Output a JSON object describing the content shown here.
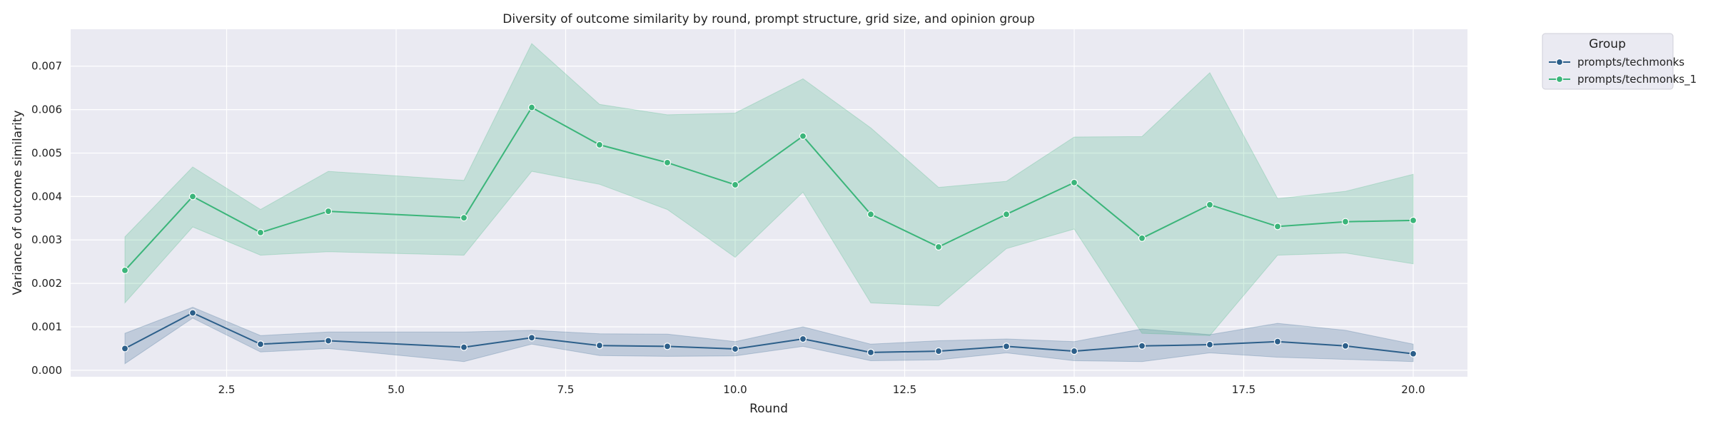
{
  "chart_data": {
    "type": "line",
    "title": "Diversity of outcome similarity by round, prompt structure, grid size, and opinion group",
    "xlabel": "Round",
    "ylabel": "Variance of outcome similarity",
    "xlim": [
      0.2,
      20.8
    ],
    "ylim": [
      -0.00015,
      0.00785
    ],
    "xticks": [
      2.5,
      5.0,
      7.5,
      10.0,
      12.5,
      15.0,
      17.5,
      20.0
    ],
    "xtick_labels": [
      "2.5",
      "5.0",
      "7.5",
      "10.0",
      "12.5",
      "15.0",
      "17.5",
      "20.0"
    ],
    "yticks": [
      0.0,
      0.001,
      0.002,
      0.003,
      0.004,
      0.005,
      0.006,
      0.007
    ],
    "ytick_labels": [
      "0.000",
      "0.001",
      "0.002",
      "0.003",
      "0.004",
      "0.005",
      "0.006",
      "0.007"
    ],
    "grid": true,
    "legend": {
      "title": "Group",
      "placement": "outside-top-right"
    },
    "series": [
      {
        "name": "prompts/techmonks",
        "color": "#2c5f8a",
        "x": [
          1,
          2,
          3,
          4,
          6,
          7,
          8,
          9,
          10,
          11,
          12,
          13,
          14,
          15,
          16,
          17,
          18,
          19,
          20
        ],
        "y": [
          0.0005,
          0.00132,
          0.0006,
          0.00068,
          0.00053,
          0.00075,
          0.00057,
          0.00055,
          0.00049,
          0.00072,
          0.00041,
          0.00044,
          0.00055,
          0.00044,
          0.00056,
          0.00059,
          0.00066,
          0.00056,
          0.00038
        ],
        "ci_lower": [
          0.00015,
          0.0012,
          0.00042,
          0.0005,
          0.0002,
          0.0006,
          0.00034,
          0.00032,
          0.00033,
          0.00055,
          0.00022,
          0.00024,
          0.0004,
          0.00022,
          0.0002,
          0.0004,
          0.0003,
          0.00025,
          0.0002
        ],
        "ci_upper": [
          0.00085,
          0.00145,
          0.0008,
          0.00088,
          0.00088,
          0.00092,
          0.00084,
          0.00083,
          0.00066,
          0.001,
          0.0006,
          0.00068,
          0.00072,
          0.00066,
          0.00095,
          0.00082,
          0.00108,
          0.00092,
          0.0006
        ]
      },
      {
        "name": "prompts/techmonks_1",
        "color": "#3bb57a",
        "x": [
          1,
          2,
          3,
          4,
          6,
          7,
          8,
          9,
          10,
          11,
          12,
          13,
          14,
          15,
          16,
          17,
          18,
          19,
          20
        ],
        "y": [
          0.0023,
          0.004,
          0.00317,
          0.00366,
          0.00351,
          0.00605,
          0.00519,
          0.00478,
          0.00427,
          0.00539,
          0.00359,
          0.00284,
          0.00359,
          0.00432,
          0.00304,
          0.00381,
          0.00331,
          0.00342,
          0.00345
        ],
        "ci_lower": [
          0.00155,
          0.0033,
          0.00265,
          0.00273,
          0.00265,
          0.00458,
          0.00428,
          0.0037,
          0.0026,
          0.0041,
          0.00155,
          0.00148,
          0.0028,
          0.00325,
          0.00085,
          0.0008,
          0.00265,
          0.0027,
          0.00245
        ],
        "ci_upper": [
          0.00307,
          0.00468,
          0.0037,
          0.00458,
          0.00437,
          0.00752,
          0.00612,
          0.00588,
          0.00592,
          0.00671,
          0.00558,
          0.00421,
          0.00435,
          0.00537,
          0.00538,
          0.00685,
          0.00395,
          0.00412,
          0.00451
        ]
      }
    ]
  }
}
